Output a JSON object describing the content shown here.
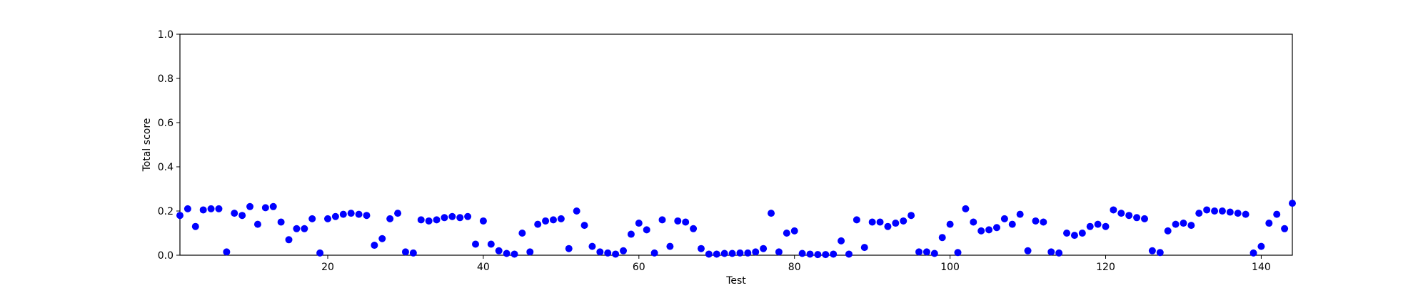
{
  "chart_data": {
    "type": "scatter",
    "title": "",
    "xlabel": "Test",
    "ylabel": "Total score",
    "xlim": [
      1,
      144
    ],
    "ylim": [
      0.0,
      1.0
    ],
    "xticks": [
      20,
      40,
      60,
      80,
      100,
      120,
      140
    ],
    "yticks": [
      0.0,
      0.2,
      0.4,
      0.6,
      0.8,
      1.0
    ],
    "ytick_labels": [
      "0.0",
      "0.2",
      "0.4",
      "0.6",
      "0.8",
      "1.0"
    ],
    "grid": false,
    "marker_color": "#0000ff",
    "series": [
      {
        "x": [
          1,
          2,
          3,
          4,
          5,
          6,
          7,
          8,
          9,
          10,
          11,
          12,
          13,
          14,
          15,
          16,
          17,
          18,
          19,
          20,
          21,
          22,
          23,
          24,
          25,
          26,
          27,
          28,
          29,
          30,
          31,
          32,
          33,
          34,
          35,
          36,
          37,
          38,
          39,
          40,
          41,
          42,
          43,
          44,
          45,
          46,
          47,
          48,
          49,
          50,
          51,
          52,
          53,
          54,
          55,
          56,
          57,
          58,
          59,
          60,
          61,
          62,
          63,
          64,
          65,
          66,
          67,
          68,
          69,
          70,
          71,
          72,
          73,
          74,
          75,
          76,
          77,
          78,
          79,
          80,
          81,
          82,
          83,
          84,
          85,
          86,
          87,
          88,
          89,
          90,
          91,
          92,
          93,
          94,
          95,
          96,
          97,
          98,
          99,
          100,
          101,
          102,
          103,
          104,
          105,
          106,
          107,
          108,
          109,
          110,
          111,
          112,
          113,
          114,
          115,
          116,
          117,
          118,
          119,
          120,
          121,
          122,
          123,
          124,
          125,
          126,
          127,
          128,
          129,
          130,
          131,
          132,
          133,
          134,
          135,
          136,
          137,
          138,
          139,
          140,
          141,
          142,
          143,
          144
        ],
        "values": [
          0.18,
          0.21,
          0.13,
          0.205,
          0.21,
          0.21,
          0.015,
          0.19,
          0.18,
          0.22,
          0.14,
          0.215,
          0.22,
          0.15,
          0.07,
          0.12,
          0.12,
          0.165,
          0.01,
          0.165,
          0.175,
          0.185,
          0.19,
          0.185,
          0.18,
          0.045,
          0.075,
          0.165,
          0.19,
          0.015,
          0.01,
          0.16,
          0.155,
          0.16,
          0.17,
          0.175,
          0.17,
          0.175,
          0.05,
          0.155,
          0.05,
          0.02,
          0.008,
          0.005,
          0.1,
          0.015,
          0.14,
          0.155,
          0.16,
          0.165,
          0.03,
          0.2,
          0.135,
          0.04,
          0.015,
          0.01,
          0.005,
          0.02,
          0.095,
          0.145,
          0.115,
          0.01,
          0.16,
          0.04,
          0.155,
          0.15,
          0.12,
          0.03,
          0.005,
          0.005,
          0.008,
          0.008,
          0.01,
          0.01,
          0.015,
          0.03,
          0.19,
          0.015,
          0.1,
          0.11,
          0.008,
          0.005,
          0.003,
          0.003,
          0.005,
          0.065,
          0.005,
          0.16,
          0.035,
          0.15,
          0.15,
          0.13,
          0.145,
          0.155,
          0.18,
          0.015,
          0.015,
          0.008,
          0.08,
          0.14,
          0.012,
          0.21,
          0.15,
          0.11,
          0.115,
          0.125,
          0.165,
          0.14,
          0.185,
          0.02,
          0.155,
          0.15,
          0.015,
          0.01,
          0.1,
          0.09,
          0.1,
          0.13,
          0.14,
          0.13,
          0.205,
          0.19,
          0.18,
          0.17,
          0.165,
          0.02,
          0.012,
          0.11,
          0.14,
          0.145,
          0.135,
          0.19,
          0.205,
          0.2,
          0.2,
          0.195,
          0.19,
          0.185,
          0.01,
          0.04,
          0.145,
          0.185,
          0.12,
          0.235
        ]
      }
    ]
  }
}
